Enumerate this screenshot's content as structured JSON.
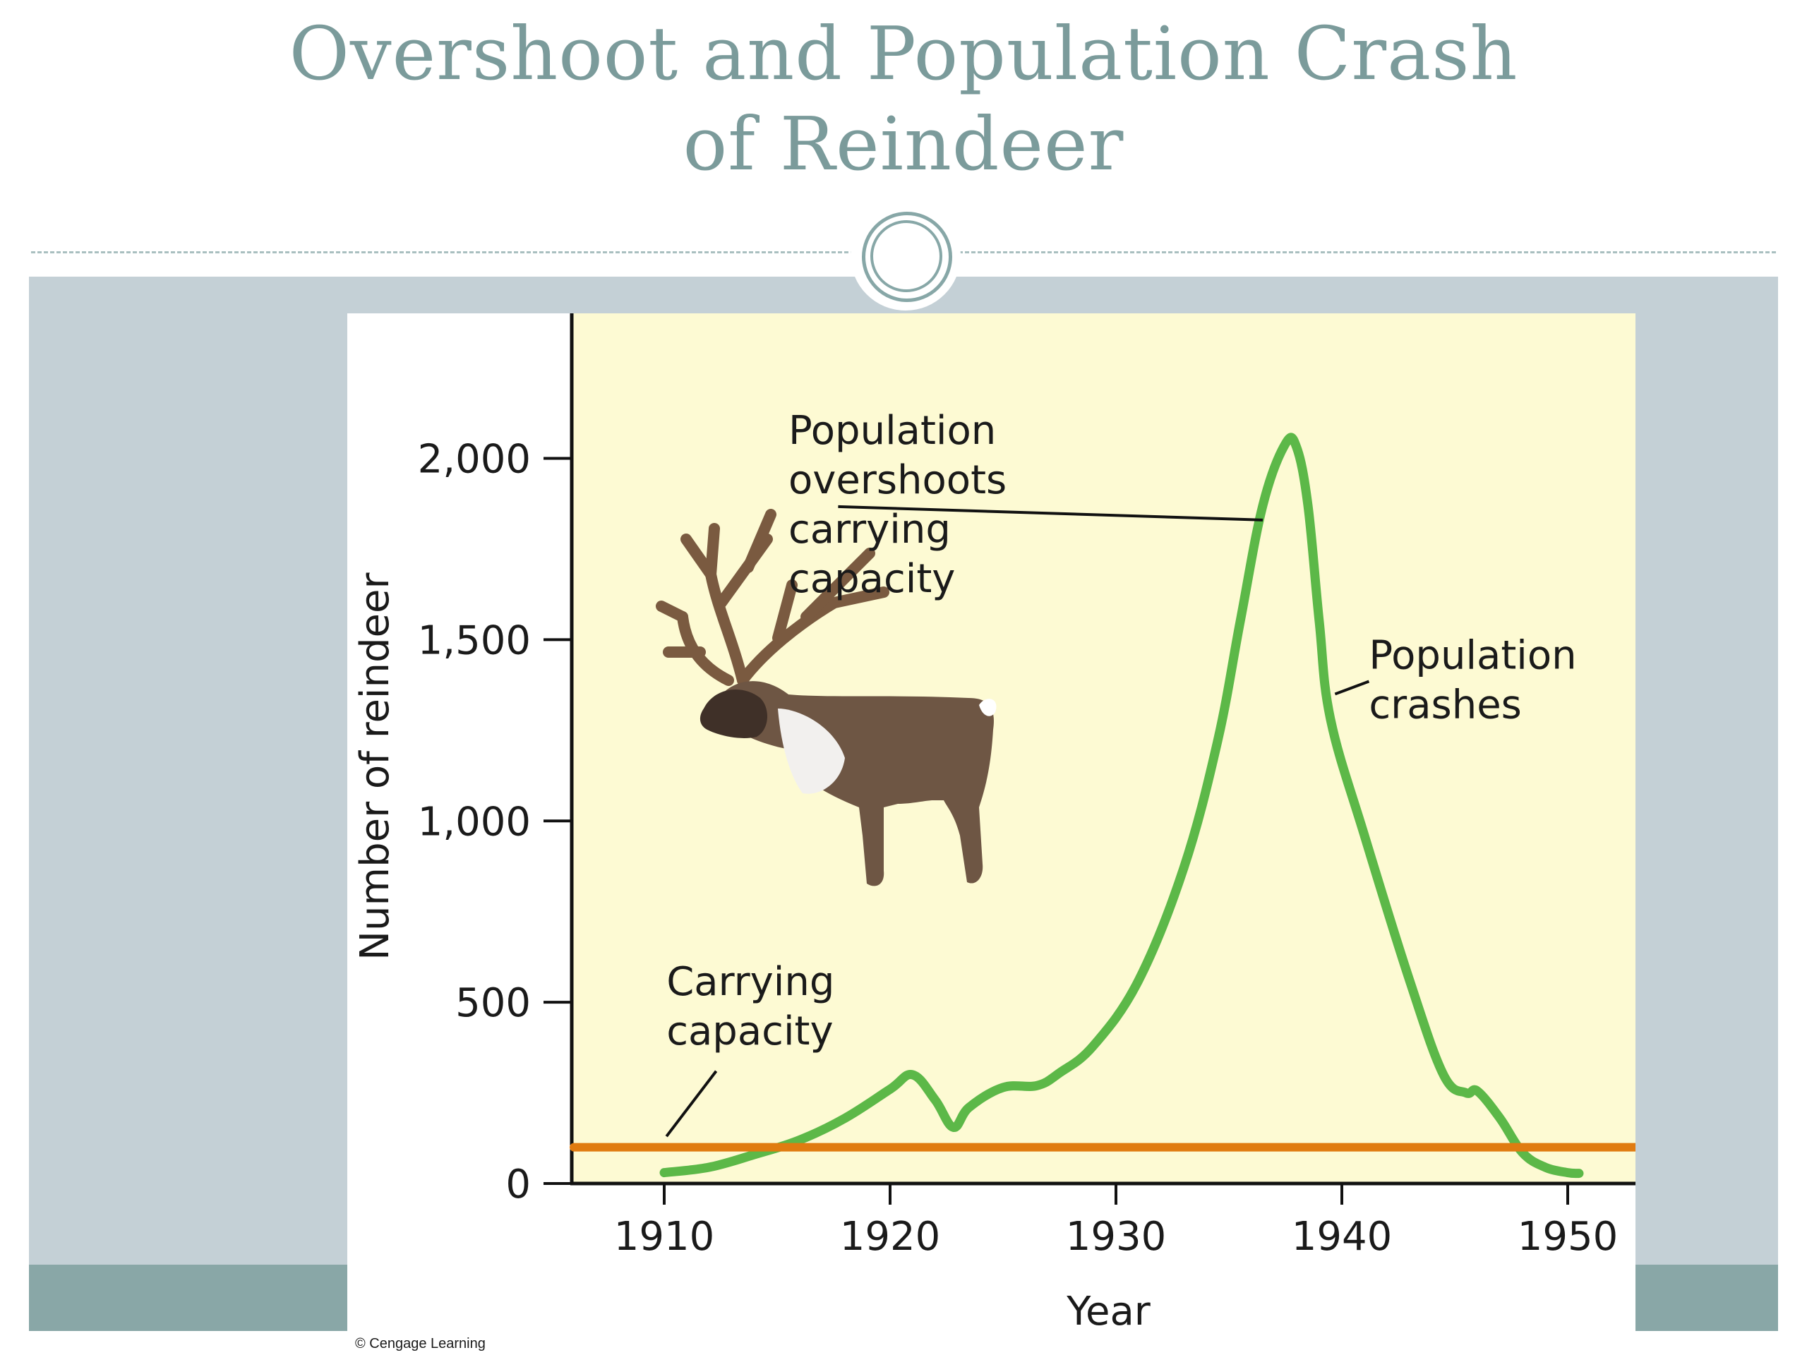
{
  "slide": {
    "title_line1": "Overshoot and Population Crash",
    "title_line2": "of Reindeer",
    "copyright": "© Cengage Learning"
  },
  "colors": {
    "title": "#7b9b9b",
    "frame": "#a9bfc0",
    "background_band": "#c4d0d6",
    "footer_band": "#89a7a7",
    "plot_background": "#fdfad3",
    "population_line": "#5cb848",
    "carrying_capacity_line": "#e07b10"
  },
  "chart_data": {
    "type": "line",
    "title": "",
    "xlabel": "Year",
    "ylabel": "Number of reindeer",
    "xlim": [
      1906,
      1953
    ],
    "ylim": [
      0,
      2400
    ],
    "x_ticks": [
      1910,
      1920,
      1930,
      1940,
      1950
    ],
    "x_tick_labels": [
      "1910",
      "1920",
      "1930",
      "1940",
      "1950"
    ],
    "y_ticks": [
      0,
      500,
      1000,
      1500,
      2000
    ],
    "y_tick_labels": [
      "0",
      "500",
      "1,000",
      "1,500",
      "2,000"
    ],
    "grid": false,
    "series": [
      {
        "type": "line",
        "color": "#5cb848",
        "x": [
          1910,
          1912,
          1914,
          1916,
          1918,
          1920,
          1921,
          1922,
          1922.8,
          1923.5,
          1925,
          1926.5,
          1927.5,
          1929,
          1931,
          1933,
          1934.5,
          1935.5,
          1936.5,
          1937.5,
          1938,
          1938.5,
          1939,
          1939.5,
          1941,
          1943,
          1944.5,
          1945.5,
          1946,
          1947,
          1948,
          1949,
          1950,
          1950.5
        ],
        "y": [
          30,
          45,
          80,
          120,
          180,
          260,
          300,
          230,
          155,
          210,
          265,
          270,
          305,
          380,
          560,
          870,
          1220,
          1550,
          1870,
          2040,
          2030,
          1870,
          1550,
          1280,
          960,
          560,
          300,
          250,
          255,
          180,
          85,
          45,
          30,
          28
        ]
      },
      {
        "type": "line",
        "color": "#e07b10",
        "x": [
          1906,
          1953
        ],
        "y": [
          100,
          100
        ]
      }
    ],
    "annotations": [
      {
        "lines": [
          "Population",
          "overshoots",
          "carrying",
          "capacity"
        ],
        "text_x": 1915.5,
        "text_y": 2040,
        "pointer_from": [
          1917.7,
          1867
        ],
        "pointer_to": [
          1936.5,
          1830
        ]
      },
      {
        "lines": [
          "Population",
          "crashes"
        ],
        "text_x": 1941.2,
        "text_y": 1420,
        "pointer_from": [
          1941.2,
          1385
        ],
        "pointer_to": [
          1939.7,
          1350
        ]
      },
      {
        "lines": [
          "Carrying",
          "capacity"
        ],
        "text_x": 1910.1,
        "text_y": 520,
        "pointer_from": [
          1912.3,
          310
        ],
        "pointer_to": [
          1910.1,
          130
        ]
      }
    ]
  }
}
